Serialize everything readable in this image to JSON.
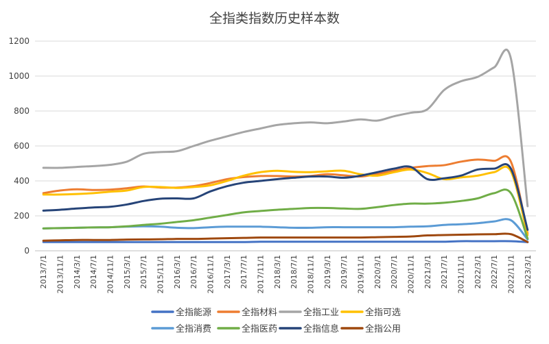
{
  "chart_data": {
    "type": "line",
    "title": "全指类指数历史样本数",
    "ylim": [
      0,
      1200
    ],
    "yticks": [
      0,
      200,
      400,
      600,
      800,
      1000,
      1200
    ],
    "grid": "horizontal",
    "legend_position": "bottom",
    "categories": [
      "2013/7/1",
      "2013/11/1",
      "2014/3/1",
      "2014/7/1",
      "2014/11/1",
      "2015/3/1",
      "2015/7/1",
      "2015/11/1",
      "2016/3/1",
      "2016/7/1",
      "2016/11/1",
      "2017/3/1",
      "2017/7/1",
      "2017/11/1",
      "2018/3/1",
      "2018/7/1",
      "2018/11/1",
      "2019/3/1",
      "2019/7/1",
      "2019/11/1",
      "2020/3/1",
      "2020/7/1",
      "2020/11/1",
      "2021/3/1",
      "2021/7/1",
      "2021/11/1",
      "2022/3/1",
      "2022/7/1",
      "2022/11/1",
      "2023/3/1"
    ],
    "series": [
      {
        "name": "全指能源",
        "color": "#4472C4",
        "values": [
          50,
          50,
          50,
          50,
          50,
          50,
          50,
          50,
          50,
          50,
          50,
          50,
          50,
          52,
          52,
          52,
          52,
          52,
          52,
          52,
          52,
          52,
          52,
          52,
          52,
          55,
          55,
          55,
          55,
          50
        ]
      },
      {
        "name": "全指材料",
        "color": "#ED7D31",
        "values": [
          330,
          345,
          352,
          348,
          350,
          358,
          368,
          362,
          362,
          370,
          388,
          410,
          422,
          428,
          428,
          425,
          428,
          438,
          432,
          425,
          440,
          458,
          475,
          485,
          490,
          510,
          522,
          515,
          510,
          100
        ]
      },
      {
        "name": "全指工业",
        "color": "#A5A5A5",
        "values": [
          475,
          475,
          480,
          485,
          492,
          510,
          555,
          565,
          570,
          600,
          630,
          655,
          680,
          700,
          720,
          730,
          735,
          730,
          740,
          752,
          745,
          770,
          790,
          810,
          920,
          970,
          995,
          1050,
          1100,
          255
        ]
      },
      {
        "name": "全指可选",
        "color": "#FFC000",
        "values": [
          322,
          322,
          325,
          330,
          338,
          345,
          365,
          365,
          360,
          365,
          375,
          400,
          430,
          450,
          458,
          452,
          450,
          455,
          458,
          438,
          430,
          450,
          465,
          445,
          410,
          420,
          430,
          450,
          455,
          90
        ]
      },
      {
        "name": "全指消费",
        "color": "#5B9BD5",
        "values": [
          128,
          130,
          132,
          134,
          135,
          138,
          140,
          138,
          132,
          130,
          135,
          138,
          138,
          138,
          135,
          132,
          132,
          135,
          135,
          135,
          135,
          135,
          138,
          140,
          148,
          152,
          158,
          168,
          175,
          65
        ]
      },
      {
        "name": "全指医药",
        "color": "#70AD47",
        "values": [
          128,
          130,
          132,
          134,
          135,
          140,
          148,
          155,
          165,
          175,
          190,
          205,
          220,
          228,
          235,
          240,
          245,
          245,
          242,
          240,
          250,
          262,
          270,
          270,
          275,
          285,
          300,
          330,
          330,
          70
        ]
      },
      {
        "name": "全指信息",
        "color": "#264478",
        "values": [
          230,
          235,
          242,
          248,
          252,
          265,
          285,
          298,
          300,
          300,
          340,
          370,
          390,
          400,
          410,
          418,
          425,
          425,
          418,
          430,
          450,
          470,
          480,
          410,
          415,
          430,
          465,
          470,
          470,
          120
        ]
      },
      {
        "name": "全指公用",
        "color": "#9E480E",
        "values": [
          58,
          60,
          62,
          62,
          62,
          64,
          65,
          66,
          68,
          68,
          70,
          72,
          74,
          76,
          76,
          76,
          76,
          76,
          76,
          76,
          78,
          80,
          82,
          88,
          90,
          92,
          94,
          95,
          95,
          50
        ]
      }
    ]
  }
}
